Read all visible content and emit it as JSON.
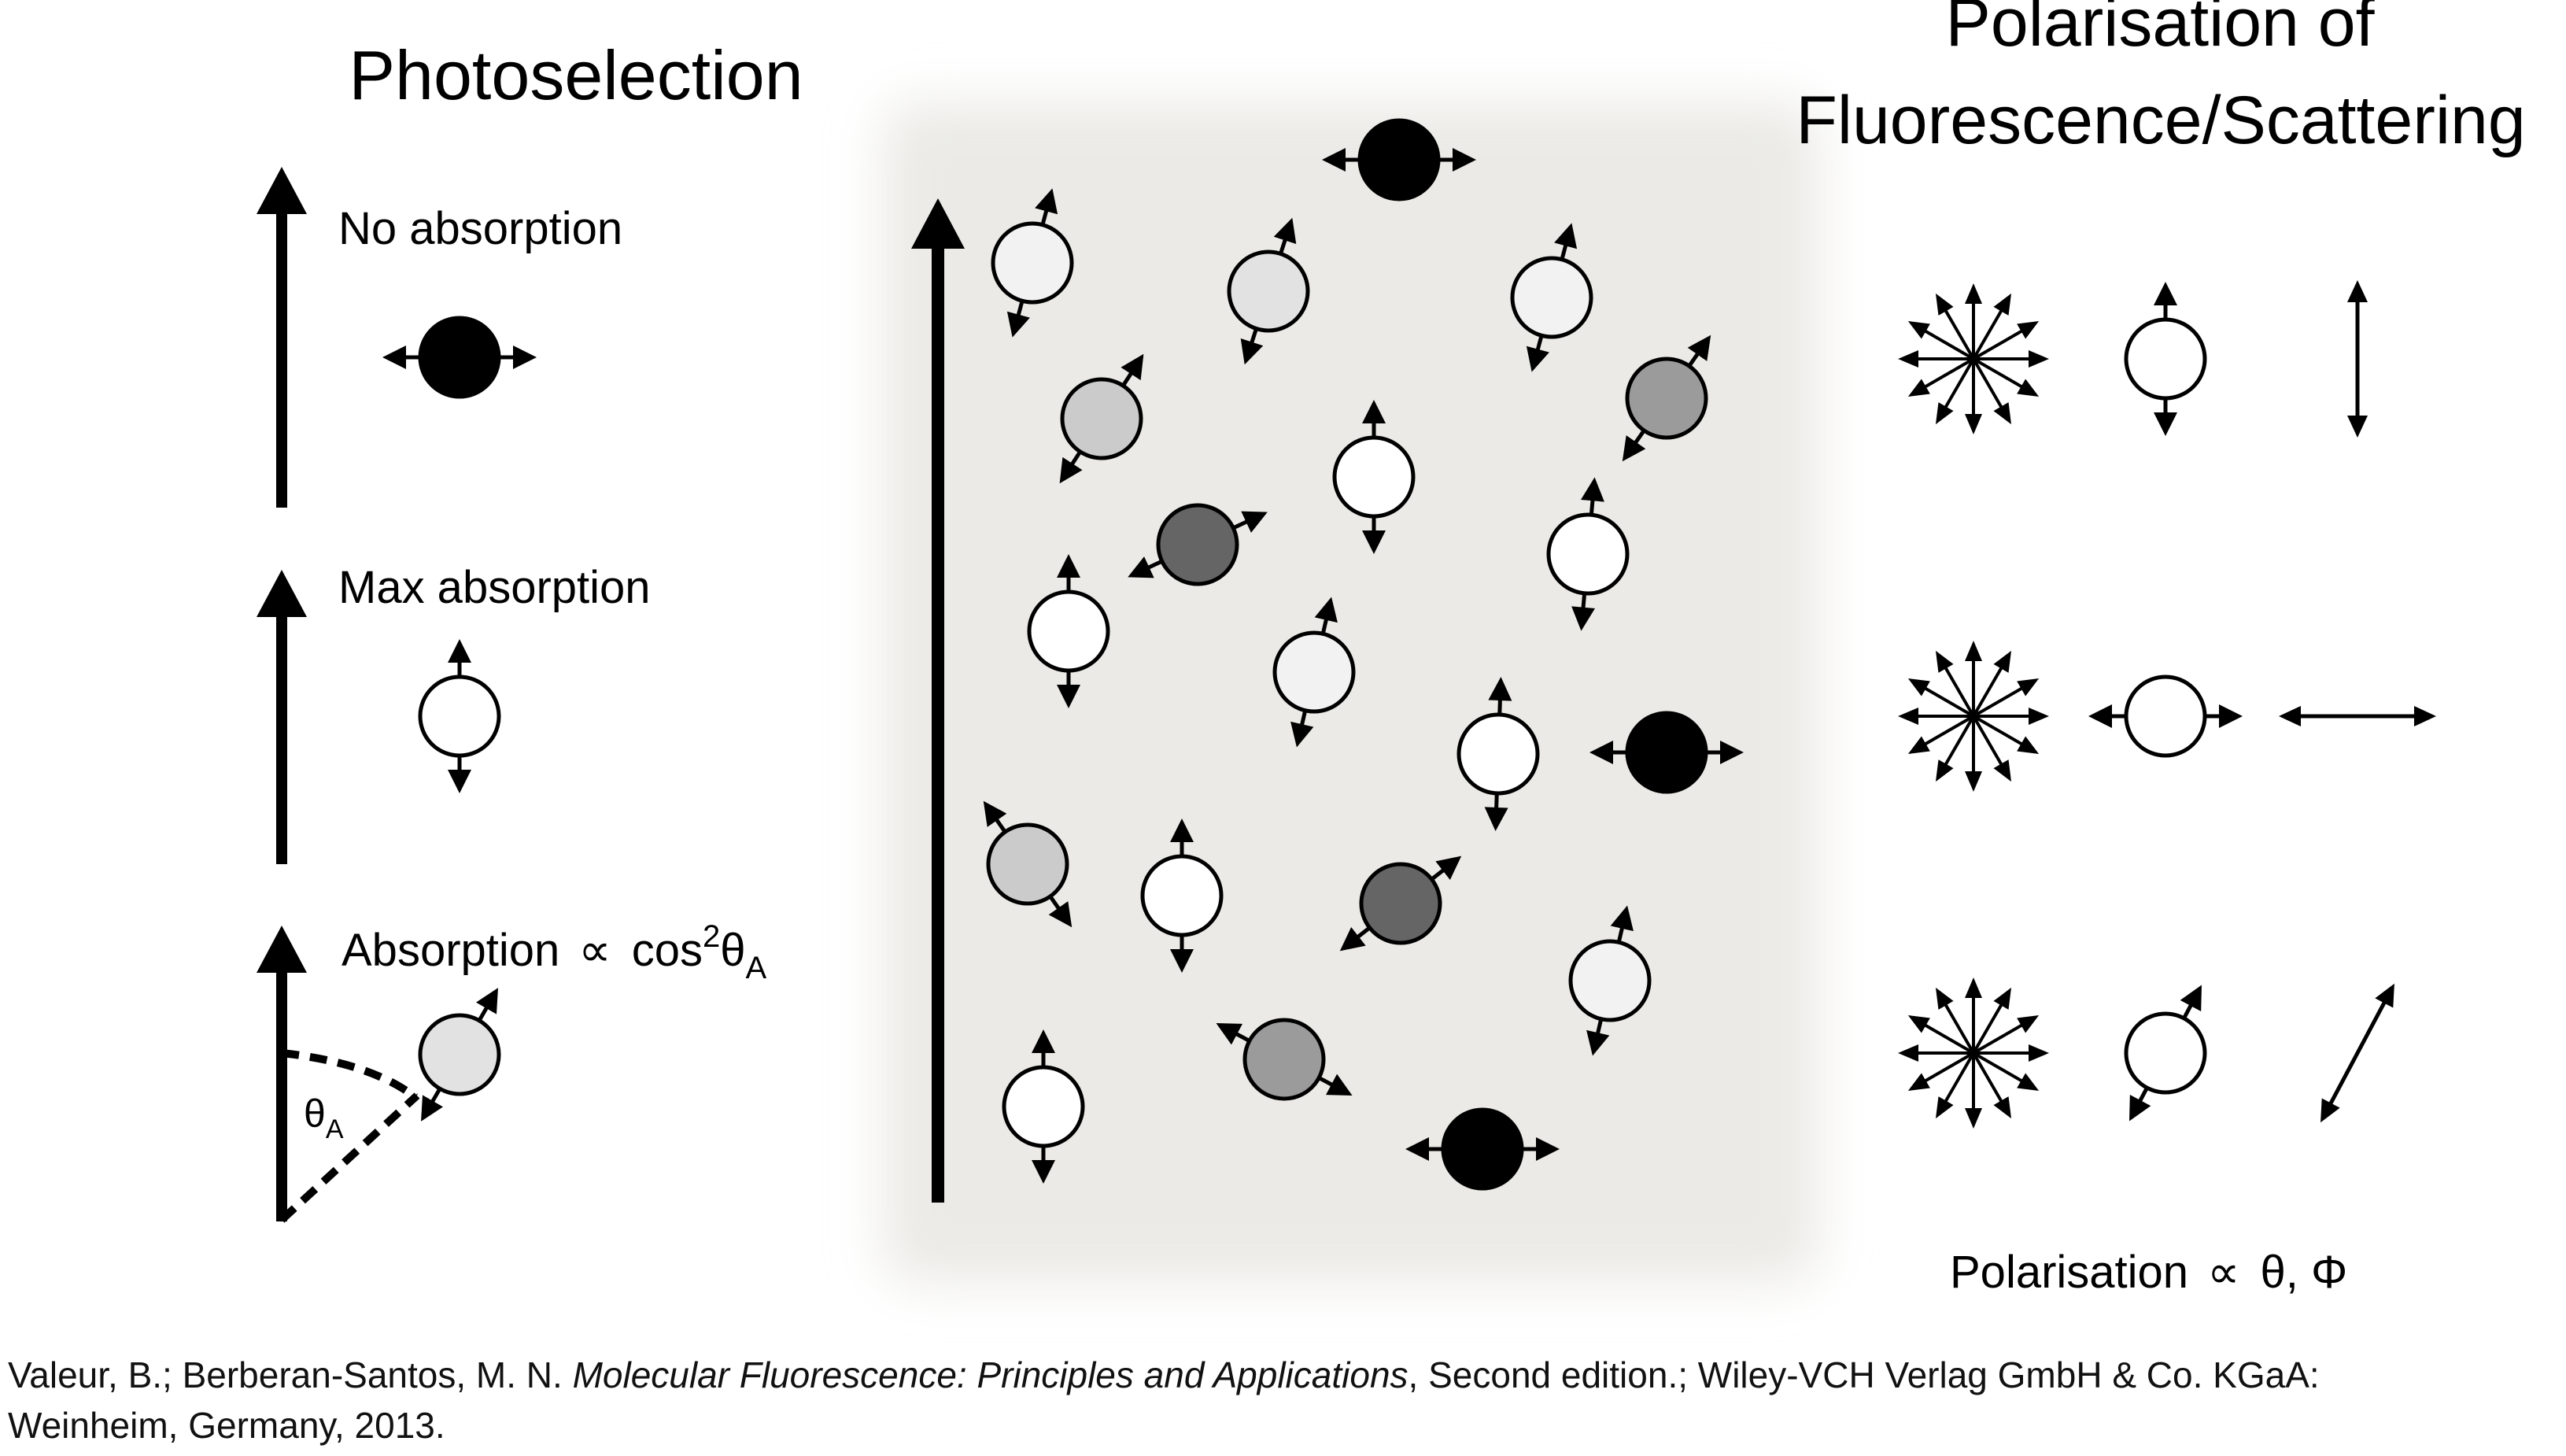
{
  "titles": {
    "photoselection": "Photoselection",
    "polarisation_line1": "Polarisation of",
    "polarisation_line2": "Fluorescence/Scattering"
  },
  "labels": {
    "no_absorption": "No absorption",
    "max_absorption": "Max absorption",
    "absorption_prefix": "Absorption",
    "proportional": "∝",
    "cos": "cos",
    "cos_exp": "2",
    "theta": "θ",
    "theta_sub": "A"
  },
  "polarisation_formula": {
    "prefix": "Polarisation",
    "proportional": "∝",
    "vars": "θ, Φ"
  },
  "citation": {
    "authors": "Valeur, B.; Berberan-Santos, M. N. ",
    "book_title": "Molecular Fluorescence: Principles and Applications",
    "rest_line1": ", Second edition.; Wiley-VCH Verlag GmbH & Co. KGaA:",
    "line2": "Weinheim, Germany, 2013."
  },
  "colors": {
    "panel": "#ebeae6",
    "stroke": "#000000",
    "black": "#000000",
    "white": "#ffffff",
    "light": "#f2f2f2",
    "lightgray": "#e2e2e2",
    "midgray": "#cbcbcb",
    "gray": "#9b9b9b",
    "dark": "#656565"
  },
  "legend_molecules": [
    {
      "fill": "black",
      "angle": 0
    },
    {
      "fill": "white",
      "angle": 90
    },
    {
      "fill": "lightgray",
      "angle": 60
    }
  ],
  "ensemble": [
    {
      "fill": "light",
      "angle": 75
    },
    {
      "fill": "lightgray",
      "angle": 72
    },
    {
      "fill": "black",
      "angle": 0
    },
    {
      "fill": "light",
      "angle": 75
    },
    {
      "fill": "midgray",
      "angle": 57
    },
    {
      "fill": "gray",
      "angle": 55
    },
    {
      "fill": "white",
      "angle": 90
    },
    {
      "fill": "dark",
      "angle": 25
    },
    {
      "fill": "white",
      "angle": 85
    },
    {
      "fill": "white",
      "angle": 90
    },
    {
      "fill": "light",
      "angle": 77
    },
    {
      "fill": "white",
      "angle": 88
    },
    {
      "fill": "black",
      "angle": 0
    },
    {
      "fill": "midgray",
      "angle": 125
    },
    {
      "fill": "white",
      "angle": 90
    },
    {
      "fill": "dark",
      "angle": 38
    },
    {
      "fill": "light",
      "angle": 77
    },
    {
      "fill": "white",
      "angle": 90
    },
    {
      "fill": "gray",
      "angle": 152
    },
    {
      "fill": "black",
      "angle": 0
    }
  ],
  "polarisation_rows": [
    {
      "angle": 90
    },
    {
      "angle": 0
    },
    {
      "angle": 62
    }
  ]
}
